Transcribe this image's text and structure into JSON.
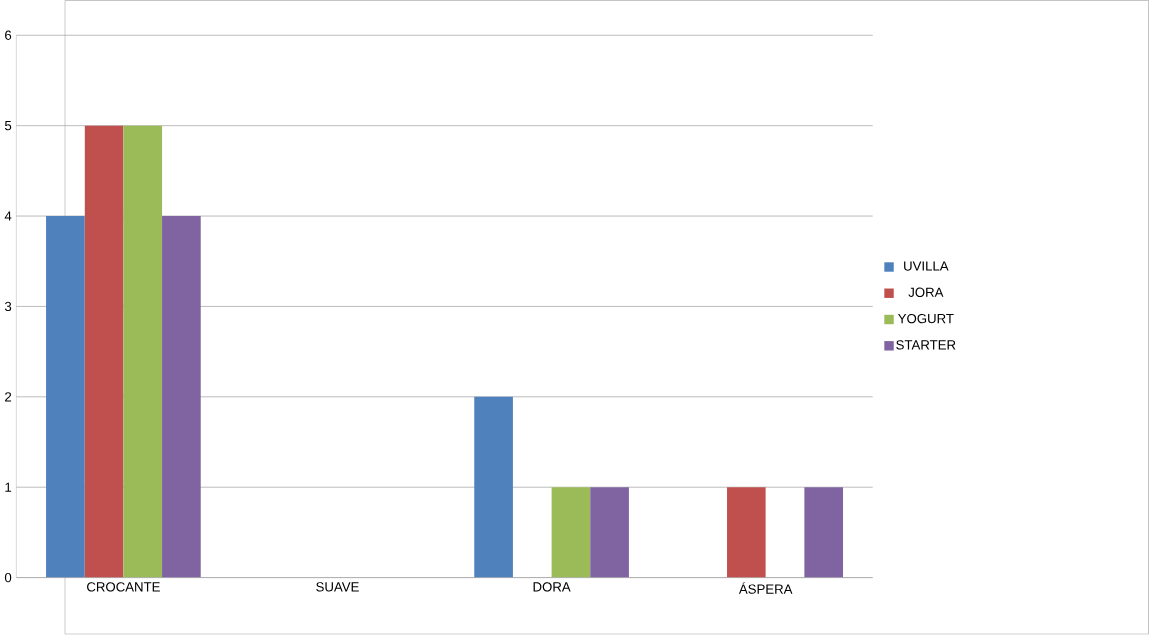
{
  "chart_data": {
    "type": "bar",
    "categories": [
      "CROCANTE",
      "SUAVE",
      "DORA",
      "ÁSPERA"
    ],
    "series": [
      {
        "name": "UVILLA",
        "color": "#4f81bd",
        "values": [
          4,
          0,
          2,
          0
        ]
      },
      {
        "name": "JORA",
        "color": "#c0504d",
        "values": [
          5,
          0,
          0,
          1
        ]
      },
      {
        "name": "YOGURT",
        "color": "#9bbb59",
        "values": [
          5,
          0,
          1,
          0
        ]
      },
      {
        "name": "STARTER",
        "color": "#8064a2",
        "values": [
          4,
          0,
          1,
          1
        ]
      }
    ],
    "ylim": [
      0,
      6
    ],
    "yticks": [
      0,
      1,
      2,
      3,
      4,
      5,
      6
    ],
    "grid": "y",
    "legend": "right"
  }
}
